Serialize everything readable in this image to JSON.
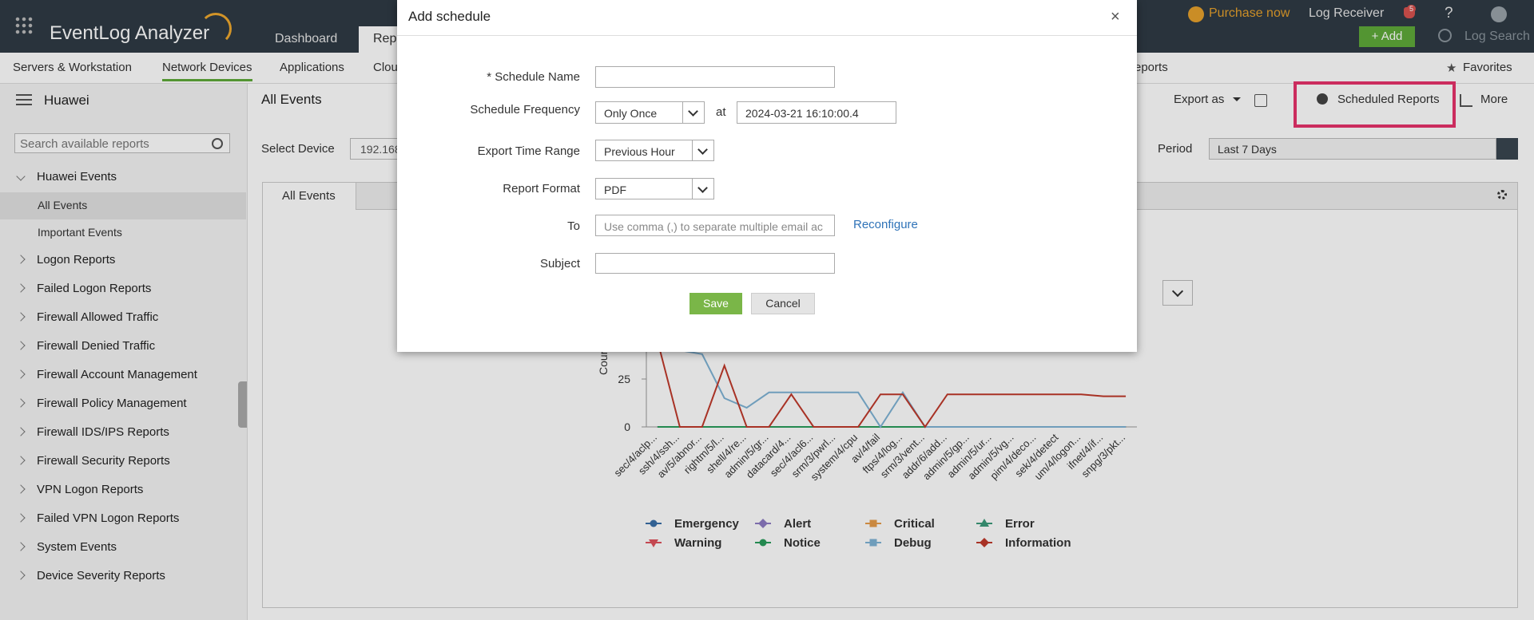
{
  "header": {
    "logo": "EventLog Analyzer",
    "tabs": [
      "Dashboard",
      "Rep"
    ],
    "purchase": "Purchase now",
    "log_receiver": "Log Receiver",
    "notification_count": 5,
    "help": "?",
    "add": "+ Add",
    "log_search": "Log Search"
  },
  "nav": {
    "items": [
      "Servers & Workstation",
      "Network Devices",
      "Applications",
      "Clou",
      "eports"
    ],
    "favorites": "Favorites"
  },
  "sidebar": {
    "title": "Huawei",
    "search_placeholder": "Search available reports",
    "groups": [
      "Huawei Events",
      "Logon Reports",
      "Failed Logon Reports",
      "Firewall Allowed Traffic",
      "Firewall Denied Traffic",
      "Firewall Account Management",
      "Firewall Policy Management",
      "Firewall IDS/IPS Reports",
      "Firewall Security Reports",
      "VPN Logon Reports",
      "Failed VPN Logon Reports",
      "System Events",
      "Device Severity Reports"
    ],
    "children": [
      "All Events",
      "Important Events"
    ]
  },
  "main": {
    "title": "All Events",
    "export": "Export as",
    "scheduled_reports": "Scheduled Reports",
    "more": "More",
    "select_device": "Select Device",
    "device_value": "192.168",
    "period": "Period",
    "period_value": "Last 7 Days",
    "tab": "All Events"
  },
  "modal": {
    "title": "Add schedule",
    "close": "×",
    "schedule_name_label": "* Schedule Name",
    "frequency_label": "Schedule Frequency",
    "frequency_value": "Only Once",
    "at": "at",
    "datetime": "2024-03-21 16:10:00.4",
    "export_range_label": "Export Time Range",
    "export_range_value": "Previous Hour",
    "format_label": "Report Format",
    "format_value": "PDF",
    "to_label": "To",
    "to_placeholder": "Use comma (,) to separate multiple email ac",
    "reconfigure": "Reconfigure",
    "subject_label": "Subject",
    "save": "Save",
    "cancel": "Cancel"
  },
  "chart_data": {
    "type": "line",
    "y_label": "Count",
    "ylim": [
      0,
      50
    ],
    "yticks": [
      0,
      25
    ],
    "categories": [
      "sec/4/aclp...",
      "ssh/4/ssh...",
      "av/5/abnor...",
      "rightm/5/l...",
      "shell/4/re...",
      "admin/5/gr...",
      "datacard/4...",
      "sec/4/acl6...",
      "srm/3/pwrl...",
      "system/4/cpu",
      "av/4/fail",
      "ftps/4/log...",
      "srm/3/vent...",
      "addr/6/add...",
      "admin/5/gp...",
      "admin/5/ur...",
      "admin/5/vg...",
      "pim/4/deco...",
      "sek/4/detect",
      "um/4/logon...",
      "ifnet/4/if...",
      "snpg/3/pkt..."
    ],
    "series": [
      {
        "name": "Emergency",
        "color": "#3a6fa8",
        "marker": "circle",
        "values": [
          0,
          0,
          0,
          0,
          0,
          0,
          0,
          0,
          0,
          0,
          0,
          0,
          0,
          0,
          0,
          0,
          0,
          0,
          0,
          0,
          0,
          0
        ]
      },
      {
        "name": "Alert",
        "color": "#8e7cc3",
        "marker": "diamond",
        "values": [
          0,
          0,
          0,
          0,
          0,
          0,
          0,
          0,
          0,
          0,
          0,
          0,
          0,
          0,
          0,
          0,
          0,
          0,
          0,
          0,
          0,
          0
        ]
      },
      {
        "name": "Critical",
        "color": "#e69c4b",
        "marker": "square",
        "values": [
          0,
          0,
          0,
          0,
          0,
          0,
          0,
          0,
          0,
          0,
          0,
          0,
          0,
          0,
          0,
          0,
          0,
          0,
          0,
          0,
          0,
          0
        ]
      },
      {
        "name": "Error",
        "color": "#3c9a7a",
        "marker": "triangle",
        "values": [
          0,
          0,
          0,
          0,
          0,
          0,
          0,
          0,
          0,
          0,
          0,
          0,
          0,
          0,
          0,
          0,
          0,
          0,
          0,
          0,
          0,
          0
        ]
      },
      {
        "name": "Warning",
        "color": "#e0525d",
        "marker": "triangle-down",
        "values": [
          0,
          0,
          0,
          0,
          0,
          0,
          0,
          0,
          0,
          0,
          0,
          0,
          0,
          0,
          0,
          0,
          0,
          0,
          0,
          0,
          0,
          0
        ]
      },
      {
        "name": "Notice",
        "color": "#2a9d5c",
        "marker": "circle",
        "values": [
          0,
          0,
          0,
          0,
          0,
          0,
          0,
          0,
          0,
          0,
          0,
          0,
          0,
          0,
          0,
          0,
          0,
          0,
          0,
          0,
          0,
          0
        ]
      },
      {
        "name": "Debug",
        "color": "#7fb3d5",
        "marker": "square",
        "values": [
          40,
          40,
          38,
          15,
          10,
          18,
          18,
          18,
          18,
          18,
          0,
          18,
          0,
          0,
          0,
          0,
          0,
          0,
          0,
          0,
          0,
          0
        ]
      },
      {
        "name": "Information",
        "color": "#c0392b",
        "marker": "diamond",
        "values": [
          45,
          0,
          0,
          32,
          0,
          0,
          17,
          0,
          0,
          0,
          17,
          17,
          0,
          17,
          17,
          17,
          17,
          17,
          17,
          17,
          16,
          16
        ]
      }
    ]
  }
}
